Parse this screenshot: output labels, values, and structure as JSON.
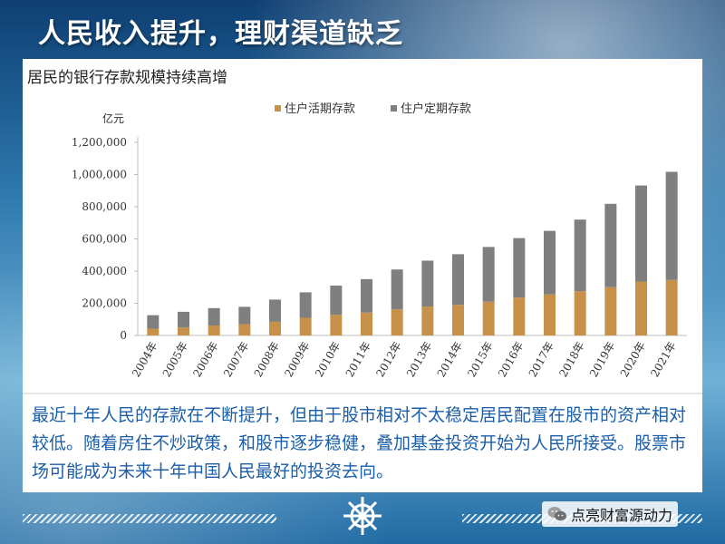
{
  "slide": {
    "title": "人民收入提升，理财渠道缺乏",
    "description": "最近十年人民的存款在不断提升，但由于股市相对不太稳定居民配置在股市的资产相对较低。随着房住不炒政策，和股市逐步稳健，叠加基金投资开始为人民所接受。股票市场可能成为未来十年中国人民最好的投资去向。",
    "watermark": "点亮财富源动力"
  },
  "chart_data": {
    "type": "bar",
    "stacked": true,
    "title": "居民的银行存款规模持续高增",
    "ylabel": "亿元",
    "xlabel": "",
    "categories": [
      "2004年",
      "2005年",
      "2006年",
      "2007年",
      "2008年",
      "2009年",
      "2010年",
      "2011年",
      "2012年",
      "2013年",
      "2014年",
      "2015年",
      "2016年",
      "2017年",
      "2018年",
      "2019年",
      "2020年",
      "2021年"
    ],
    "series": [
      {
        "name": "住户活期存款",
        "color": "#c8914a",
        "values": [
          42000,
          50000,
          62000,
          70000,
          85000,
          110000,
          128000,
          142000,
          162000,
          180000,
          190000,
          210000,
          235000,
          255000,
          275000,
          300000,
          335000,
          345000
        ]
      },
      {
        "name": "住户定期存款",
        "color": "#7f7f7f",
        "values": [
          84000,
          97000,
          108000,
          108000,
          138000,
          158000,
          182000,
          208000,
          248000,
          285000,
          315000,
          340000,
          370000,
          395000,
          445000,
          518000,
          597000,
          672000
        ]
      }
    ],
    "ylim": [
      0,
      1200000
    ],
    "yticks": [
      0,
      200000,
      400000,
      600000,
      800000,
      1000000,
      1200000
    ],
    "ytick_labels": [
      "0",
      "200,000",
      "400,000",
      "600,000",
      "800,000",
      "1,000,000",
      "1,200,000"
    ],
    "legend_position": "top",
    "grid": false
  }
}
